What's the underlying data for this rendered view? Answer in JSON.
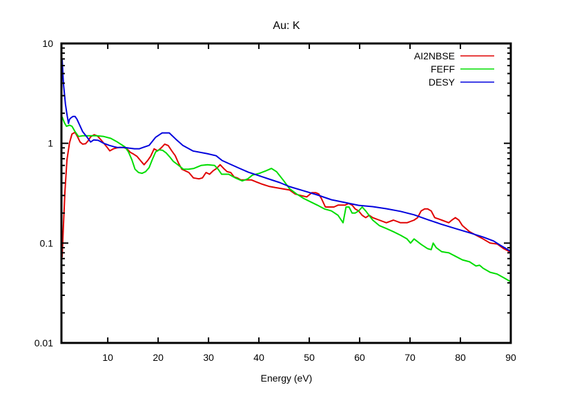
{
  "chart_data": {
    "type": "line",
    "title": "Au: K",
    "xlabel": "Energy (eV)",
    "ylabel": "",
    "xlim": [
      0.8,
      90
    ],
    "ylim": [
      0.01,
      10
    ],
    "yscale": "log",
    "grid": false,
    "legend_position": "top-right",
    "x_ticks": [
      10,
      20,
      30,
      40,
      50,
      60,
      70,
      80,
      90
    ],
    "x_tick_labels": [
      "10",
      "20",
      "30",
      "40",
      "50",
      "60",
      "70",
      "80",
      "90"
    ],
    "y_ticks": [
      0.01,
      0.1,
      1,
      10
    ],
    "y_tick_labels": [
      "0.01",
      "0.1",
      "1",
      "10"
    ],
    "series": [
      {
        "name": "AI2NBSE",
        "color": "#e00000",
        "points": [
          [
            0.94,
            0.072
          ],
          [
            1.2,
            0.15
          ],
          [
            1.5,
            0.33
          ],
          [
            1.9,
            0.68
          ],
          [
            2.4,
            1.01
          ],
          [
            2.9,
            1.24
          ],
          [
            3.5,
            1.29
          ],
          [
            4.0,
            1.16
          ],
          [
            4.5,
            1.03
          ],
          [
            5.0,
            0.98
          ],
          [
            5.6,
            0.99
          ],
          [
            6.1,
            1.06
          ],
          [
            6.6,
            1.16
          ],
          [
            7.3,
            1.22
          ],
          [
            8.0,
            1.18
          ],
          [
            8.8,
            1.06
          ],
          [
            9.8,
            0.92
          ],
          [
            10.4,
            0.84
          ],
          [
            11.1,
            0.88
          ],
          [
            11.8,
            0.9
          ],
          [
            12.4,
            0.91
          ],
          [
            13.1,
            0.91
          ],
          [
            13.8,
            0.88
          ],
          [
            14.5,
            0.81
          ],
          [
            15.1,
            0.78
          ],
          [
            15.8,
            0.74
          ],
          [
            16.5,
            0.67
          ],
          [
            17.2,
            0.61
          ],
          [
            17.9,
            0.67
          ],
          [
            18.5,
            0.74
          ],
          [
            19.2,
            0.88
          ],
          [
            19.9,
            0.84
          ],
          [
            20.6,
            0.9
          ],
          [
            21.3,
            0.98
          ],
          [
            22.0,
            0.95
          ],
          [
            22.7,
            0.84
          ],
          [
            23.4,
            0.75
          ],
          [
            24.0,
            0.64
          ],
          [
            24.7,
            0.55
          ],
          [
            25.4,
            0.53
          ],
          [
            26.1,
            0.51
          ],
          [
            27.0,
            0.45
          ],
          [
            28.1,
            0.44
          ],
          [
            28.8,
            0.45
          ],
          [
            29.5,
            0.51
          ],
          [
            30.2,
            0.49
          ],
          [
            30.9,
            0.53
          ],
          [
            31.6,
            0.56
          ],
          [
            32.3,
            0.61
          ],
          [
            33.0,
            0.56
          ],
          [
            33.7,
            0.52
          ],
          [
            34.4,
            0.51
          ],
          [
            35.1,
            0.46
          ],
          [
            35.7,
            0.45
          ],
          [
            36.4,
            0.43
          ],
          [
            37.5,
            0.43
          ],
          [
            38.5,
            0.43
          ],
          [
            39.5,
            0.41
          ],
          [
            40.6,
            0.39
          ],
          [
            42.0,
            0.37
          ],
          [
            43.3,
            0.36
          ],
          [
            44.7,
            0.35
          ],
          [
            46.1,
            0.34
          ],
          [
            47.2,
            0.31
          ],
          [
            48.3,
            0.3
          ],
          [
            49.5,
            0.29
          ],
          [
            50.5,
            0.32
          ],
          [
            51.3,
            0.32
          ],
          [
            51.9,
            0.31
          ],
          [
            52.4,
            0.28
          ],
          [
            53.2,
            0.23
          ],
          [
            54.0,
            0.23
          ],
          [
            54.9,
            0.23
          ],
          [
            55.7,
            0.24
          ],
          [
            56.4,
            0.24
          ],
          [
            57.1,
            0.24
          ],
          [
            57.8,
            0.25
          ],
          [
            58.5,
            0.24
          ],
          [
            59.1,
            0.22
          ],
          [
            59.8,
            0.21
          ],
          [
            60.5,
            0.19
          ],
          [
            61.2,
            0.18
          ],
          [
            61.9,
            0.19
          ],
          [
            62.6,
            0.18
          ],
          [
            63.9,
            0.17
          ],
          [
            65.3,
            0.16
          ],
          [
            66.7,
            0.17
          ],
          [
            68.1,
            0.16
          ],
          [
            69.4,
            0.16
          ],
          [
            70.8,
            0.17
          ],
          [
            71.5,
            0.18
          ],
          [
            72.2,
            0.21
          ],
          [
            72.9,
            0.22
          ],
          [
            73.5,
            0.22
          ],
          [
            74.2,
            0.21
          ],
          [
            74.9,
            0.18
          ],
          [
            76.3,
            0.17
          ],
          [
            77.7,
            0.16
          ],
          [
            78.3,
            0.17
          ],
          [
            79.0,
            0.18
          ],
          [
            79.7,
            0.17
          ],
          [
            80.4,
            0.15
          ],
          [
            81.8,
            0.13
          ],
          [
            83.1,
            0.12
          ],
          [
            84.5,
            0.11
          ],
          [
            85.9,
            0.1
          ],
          [
            87.3,
            0.098
          ],
          [
            88.6,
            0.088
          ],
          [
            90.0,
            0.081
          ]
        ]
      },
      {
        "name": "FEFF",
        "color": "#00dd00",
        "points": [
          [
            0.94,
            1.84
          ],
          [
            1.4,
            1.6
          ],
          [
            1.8,
            1.48
          ],
          [
            2.4,
            1.52
          ],
          [
            2.9,
            1.48
          ],
          [
            3.5,
            1.31
          ],
          [
            4.2,
            1.17
          ],
          [
            5.1,
            1.19
          ],
          [
            6.5,
            1.19
          ],
          [
            7.8,
            1.19
          ],
          [
            9.2,
            1.17
          ],
          [
            10.6,
            1.12
          ],
          [
            11.9,
            1.03
          ],
          [
            13.4,
            0.92
          ],
          [
            14.1,
            0.82
          ],
          [
            14.8,
            0.68
          ],
          [
            15.4,
            0.55
          ],
          [
            16.1,
            0.51
          ],
          [
            16.8,
            0.5
          ],
          [
            17.5,
            0.52
          ],
          [
            18.2,
            0.57
          ],
          [
            18.8,
            0.68
          ],
          [
            19.5,
            0.82
          ],
          [
            20.2,
            0.86
          ],
          [
            20.9,
            0.85
          ],
          [
            21.6,
            0.8
          ],
          [
            22.3,
            0.73
          ],
          [
            23.0,
            0.66
          ],
          [
            24.1,
            0.6
          ],
          [
            25.0,
            0.55
          ],
          [
            26.0,
            0.55
          ],
          [
            27.1,
            0.56
          ],
          [
            28.5,
            0.6
          ],
          [
            29.8,
            0.61
          ],
          [
            31.2,
            0.6
          ],
          [
            31.9,
            0.55
          ],
          [
            32.6,
            0.49
          ],
          [
            34.0,
            0.49
          ],
          [
            35.3,
            0.45
          ],
          [
            36.7,
            0.42
          ],
          [
            37.8,
            0.44
          ],
          [
            38.7,
            0.48
          ],
          [
            40.1,
            0.5
          ],
          [
            41.4,
            0.53
          ],
          [
            42.5,
            0.56
          ],
          [
            43.5,
            0.52
          ],
          [
            44.8,
            0.43
          ],
          [
            46.1,
            0.35
          ],
          [
            47.5,
            0.31
          ],
          [
            48.9,
            0.28
          ],
          [
            50.2,
            0.26
          ],
          [
            51.6,
            0.24
          ],
          [
            53.0,
            0.22
          ],
          [
            54.4,
            0.21
          ],
          [
            55.7,
            0.19
          ],
          [
            56.7,
            0.16
          ],
          [
            57.3,
            0.23
          ],
          [
            57.9,
            0.23
          ],
          [
            58.5,
            0.2
          ],
          [
            59.1,
            0.2
          ],
          [
            59.8,
            0.21
          ],
          [
            60.5,
            0.23
          ],
          [
            61.2,
            0.21
          ],
          [
            62.6,
            0.17
          ],
          [
            63.9,
            0.15
          ],
          [
            65.3,
            0.14
          ],
          [
            66.7,
            0.13
          ],
          [
            68.1,
            0.12
          ],
          [
            69.4,
            0.11
          ],
          [
            70.1,
            0.1
          ],
          [
            70.8,
            0.11
          ],
          [
            72.2,
            0.097
          ],
          [
            73.5,
            0.088
          ],
          [
            74.2,
            0.086
          ],
          [
            74.6,
            0.1
          ],
          [
            75.2,
            0.09
          ],
          [
            76.3,
            0.082
          ],
          [
            77.0,
            0.081
          ],
          [
            77.7,
            0.08
          ],
          [
            79.0,
            0.074
          ],
          [
            80.4,
            0.068
          ],
          [
            81.8,
            0.065
          ],
          [
            83.1,
            0.059
          ],
          [
            83.8,
            0.06
          ],
          [
            84.5,
            0.056
          ],
          [
            85.9,
            0.051
          ],
          [
            87.3,
            0.049
          ],
          [
            88.6,
            0.045
          ],
          [
            90.0,
            0.041
          ]
        ]
      },
      {
        "name": "DESY",
        "color": "#0000dd",
        "points": [
          [
            0.94,
            6.94
          ],
          [
            1.2,
            3.98
          ],
          [
            1.6,
            2.47
          ],
          [
            1.9,
            1.95
          ],
          [
            2.2,
            1.58
          ],
          [
            2.4,
            1.74
          ],
          [
            2.7,
            1.8
          ],
          [
            3.1,
            1.86
          ],
          [
            3.5,
            1.86
          ],
          [
            3.9,
            1.74
          ],
          [
            4.5,
            1.49
          ],
          [
            5.0,
            1.31
          ],
          [
            5.9,
            1.15
          ],
          [
            6.6,
            1.03
          ],
          [
            7.2,
            1.08
          ],
          [
            8.1,
            1.07
          ],
          [
            9.2,
            1.0
          ],
          [
            10.3,
            0.953
          ],
          [
            11.2,
            0.924
          ],
          [
            11.9,
            0.909
          ],
          [
            12.6,
            0.909
          ],
          [
            13.4,
            0.909
          ],
          [
            14.2,
            0.895
          ],
          [
            15.3,
            0.881
          ],
          [
            16.3,
            0.881
          ],
          [
            17.0,
            0.909
          ],
          [
            18.2,
            0.953
          ],
          [
            19.5,
            1.15
          ],
          [
            20.8,
            1.27
          ],
          [
            22.2,
            1.27
          ],
          [
            23.5,
            1.1
          ],
          [
            24.9,
            0.953
          ],
          [
            26.9,
            0.838
          ],
          [
            29.7,
            0.788
          ],
          [
            31.5,
            0.751
          ],
          [
            32.7,
            0.672
          ],
          [
            34.2,
            0.621
          ],
          [
            36.0,
            0.565
          ],
          [
            37.9,
            0.513
          ],
          [
            40.0,
            0.474
          ],
          [
            42.0,
            0.438
          ],
          [
            44.1,
            0.405
          ],
          [
            46.1,
            0.368
          ],
          [
            48.9,
            0.334
          ],
          [
            51.6,
            0.304
          ],
          [
            54.4,
            0.272
          ],
          [
            57.1,
            0.255
          ],
          [
            59.8,
            0.239
          ],
          [
            62.6,
            0.232
          ],
          [
            65.3,
            0.221
          ],
          [
            68.1,
            0.208
          ],
          [
            70.8,
            0.192
          ],
          [
            73.5,
            0.172
          ],
          [
            76.3,
            0.154
          ],
          [
            79.0,
            0.14
          ],
          [
            81.8,
            0.127
          ],
          [
            84.5,
            0.115
          ],
          [
            86.6,
            0.105
          ],
          [
            87.9,
            0.0953
          ],
          [
            90.0,
            0.0826
          ]
        ]
      }
    ]
  }
}
